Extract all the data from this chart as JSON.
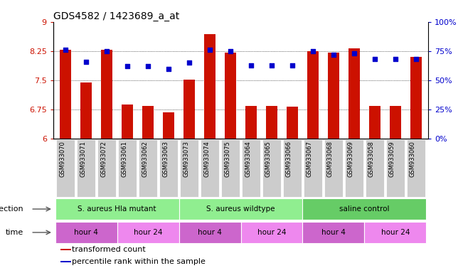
{
  "title": "GDS4582 / 1423689_a_at",
  "samples": [
    "GSM933070",
    "GSM933071",
    "GSM933072",
    "GSM933061",
    "GSM933062",
    "GSM933063",
    "GSM933073",
    "GSM933074",
    "GSM933075",
    "GSM933064",
    "GSM933065",
    "GSM933066",
    "GSM933067",
    "GSM933068",
    "GSM933069",
    "GSM933058",
    "GSM933059",
    "GSM933060"
  ],
  "bar_values": [
    8.28,
    7.44,
    8.28,
    6.88,
    6.84,
    6.68,
    7.52,
    8.68,
    8.22,
    6.84,
    6.84,
    6.82,
    8.25,
    8.22,
    8.32,
    6.84,
    6.84,
    8.1
  ],
  "dot_values": [
    76,
    66,
    75,
    62,
    62,
    60,
    65,
    76,
    75,
    63,
    63,
    63,
    75,
    72,
    73,
    68,
    68,
    68
  ],
  "ylim_left": [
    6,
    9
  ],
  "ylim_right": [
    0,
    100
  ],
  "yticks_left": [
    6,
    6.75,
    7.5,
    8.25,
    9
  ],
  "ytick_labels_left": [
    "6",
    "6.75",
    "7.5",
    "8.25",
    "9"
  ],
  "yticks_right": [
    0,
    25,
    50,
    75,
    100
  ],
  "ytick_labels_right": [
    "0%",
    "25%",
    "50%",
    "75%",
    "100%"
  ],
  "bar_color": "#CC1100",
  "dot_color": "#0000CC",
  "groups": [
    {
      "label": "S. aureus Hla mutant",
      "start": 0,
      "end": 6,
      "color": "#90EE90"
    },
    {
      "label": "S. aureus wildtype",
      "start": 6,
      "end": 12,
      "color": "#90EE90"
    },
    {
      "label": "saline control",
      "start": 12,
      "end": 18,
      "color": "#66CC66"
    }
  ],
  "time_groups": [
    {
      "label": "hour 4",
      "start": 0,
      "end": 3,
      "color": "#CC66CC"
    },
    {
      "label": "hour 24",
      "start": 3,
      "end": 6,
      "color": "#EE88EE"
    },
    {
      "label": "hour 4",
      "start": 6,
      "end": 9,
      "color": "#CC66CC"
    },
    {
      "label": "hour 24",
      "start": 9,
      "end": 12,
      "color": "#EE88EE"
    },
    {
      "label": "hour 4",
      "start": 12,
      "end": 15,
      "color": "#CC66CC"
    },
    {
      "label": "hour 24",
      "start": 15,
      "end": 18,
      "color": "#EE88EE"
    }
  ],
  "infection_label": "infection",
  "time_label": "time",
  "legend": [
    {
      "label": "transformed count",
      "color": "#CC1100"
    },
    {
      "label": "percentile rank within the sample",
      "color": "#0000CC"
    }
  ],
  "background_color": "#FFFFFF",
  "gridline_color": "#000000",
  "left_tick_color": "#CC1100",
  "right_tick_color": "#0000CC",
  "xtick_bg_color": "#CCCCCC",
  "bar_width": 0.55,
  "dot_size": 18
}
